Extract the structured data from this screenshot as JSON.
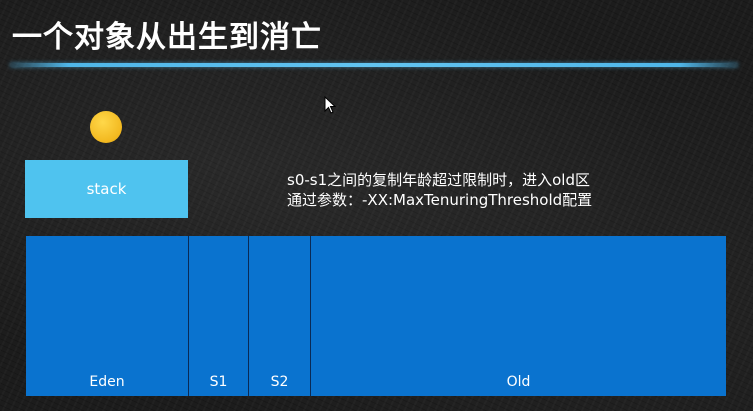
{
  "slide": {
    "title": "一个对象从出生到消亡",
    "accent_color": "#4fb6e8"
  },
  "object": {
    "icon": "object-ball-icon",
    "color": "#f5c22a"
  },
  "stack": {
    "label": "stack",
    "color": "#4fc3ef"
  },
  "note": {
    "line1": "s0-s1之间的复制年龄超过限制时，进入old区",
    "line2": "通过参数：-XX:MaxTenuringThreshold配置"
  },
  "heap": {
    "color": "#0a73cf",
    "regions": [
      {
        "label": "Eden"
      },
      {
        "label": "S1"
      },
      {
        "label": "S2"
      },
      {
        "label": "Old"
      }
    ]
  },
  "cursor": {
    "icon": "mouse-pointer-icon"
  }
}
